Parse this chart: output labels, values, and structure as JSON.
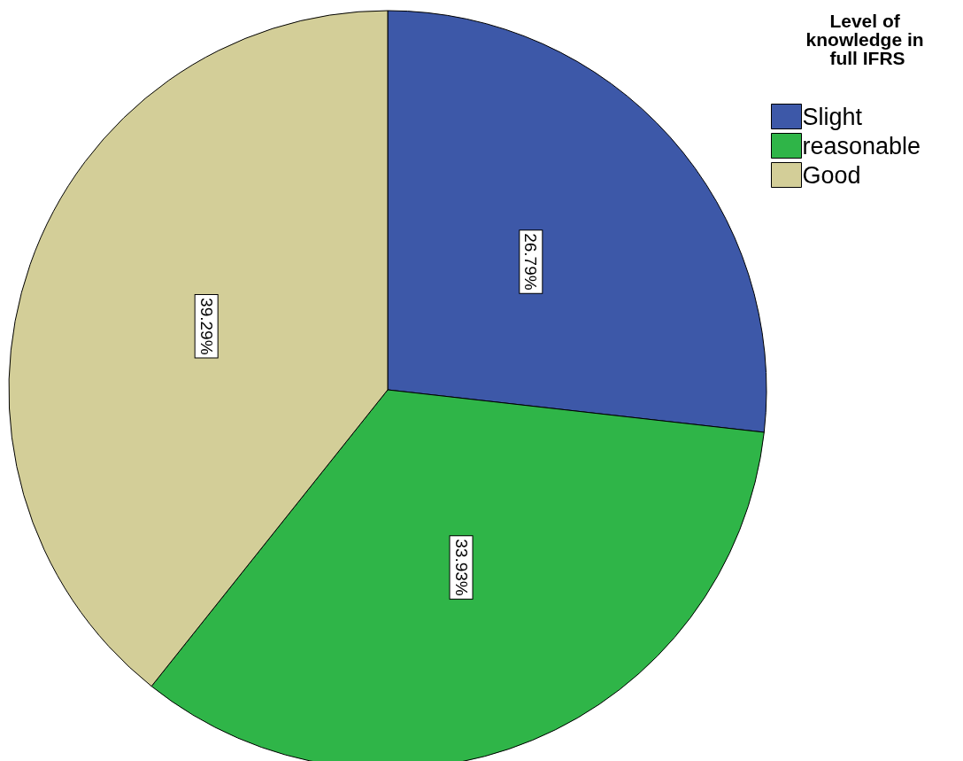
{
  "chart_data": {
    "type": "pie",
    "legend_title": "Level of knowledge in full IFRS",
    "categories": [
      "Slight",
      "reasonable",
      "Good"
    ],
    "values": [
      26.79,
      33.93,
      39.29
    ],
    "value_labels": [
      "26.79%",
      "33.93%",
      "39.29%"
    ],
    "colors": [
      "#3d58a8",
      "#2fb548",
      "#d3ce98"
    ],
    "legend": "top right"
  }
}
